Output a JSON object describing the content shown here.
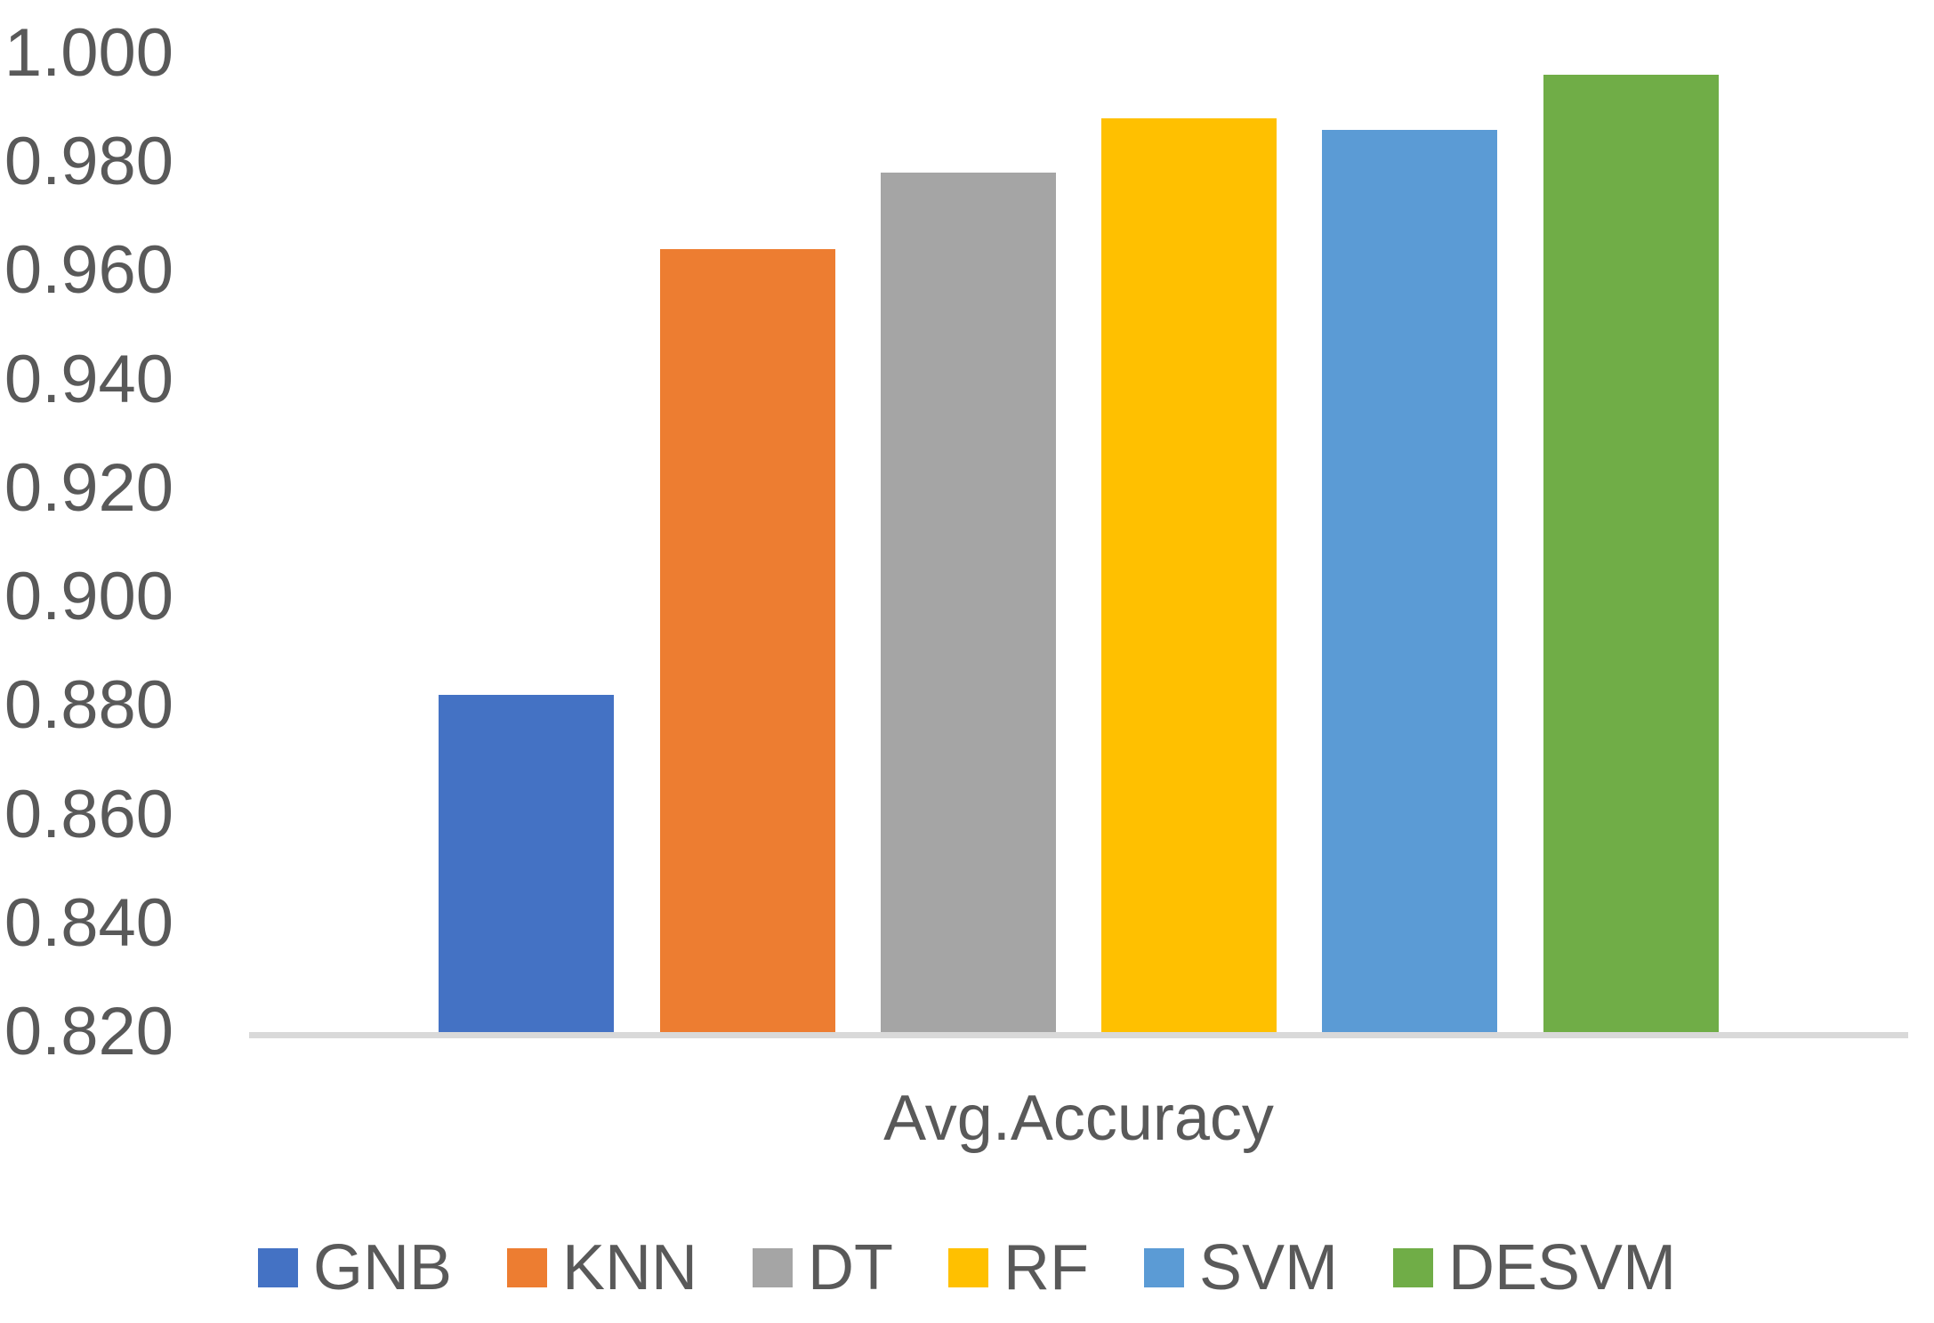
{
  "chart_data": {
    "type": "bar",
    "title": "",
    "xlabel": "Avg.Accuracy",
    "ylabel": "",
    "ylim": [
      0.82,
      1.0
    ],
    "ytick_step": 0.02,
    "yticks": [
      "1.000",
      "0.980",
      "0.960",
      "0.940",
      "0.920",
      "0.900",
      "0.880",
      "0.860",
      "0.840",
      "0.820"
    ],
    "categories": [
      "Avg.Accuracy"
    ],
    "series": [
      {
        "name": "GNB",
        "value": 0.882,
        "color": "#4472C4"
      },
      {
        "name": "KNN",
        "value": 0.964,
        "color": "#ED7D31"
      },
      {
        "name": "DT",
        "value": 0.978,
        "color": "#A5A5A5"
      },
      {
        "name": "RF",
        "value": 0.988,
        "color": "#FFC000"
      },
      {
        "name": "SVM",
        "value": 0.986,
        "color": "#5B9BD5"
      },
      {
        "name": "DESVM",
        "value": 0.996,
        "color": "#70AD47"
      }
    ],
    "legend_position": "bottom",
    "grid": false,
    "axis_line_color": "#D9D9D9",
    "text_color": "#595959"
  }
}
